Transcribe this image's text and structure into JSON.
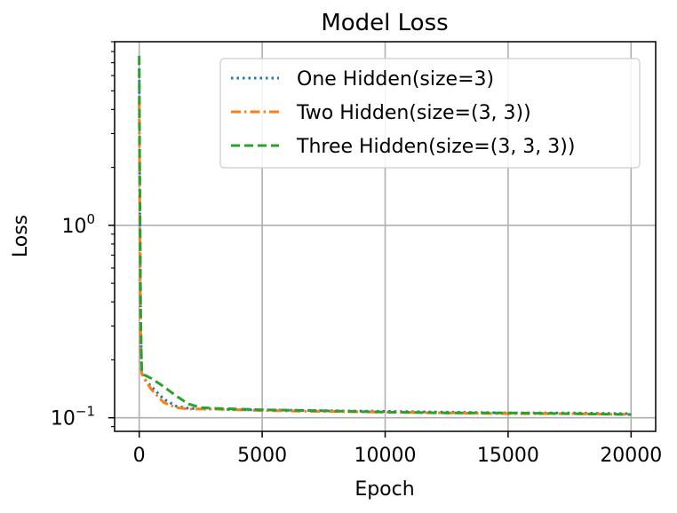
{
  "chart_data": {
    "type": "line",
    "title": "Model Loss",
    "xlabel": "Epoch",
    "ylabel": "Loss",
    "yscale": "log",
    "xlim": [
      -1000,
      21000
    ],
    "ylim": [
      0.085,
      9.0
    ],
    "grid": true,
    "legend_position": "top-right",
    "x_ticks": [
      {
        "value": 0,
        "label": "0"
      },
      {
        "value": 5000,
        "label": "5000"
      },
      {
        "value": 10000,
        "label": "10000"
      },
      {
        "value": 15000,
        "label": "15000"
      },
      {
        "value": 20000,
        "label": "20000"
      }
    ],
    "y_ticks": [
      {
        "value": 0.1,
        "base": "10",
        "exp": "−1"
      },
      {
        "value": 1,
        "base": "10",
        "exp": "0"
      }
    ],
    "series": [
      {
        "name": "One Hidden(size=3)",
        "color": "#1f77b4",
        "dash": "dotted",
        "x": [
          0,
          20,
          60,
          100,
          200,
          500,
          1000,
          1500,
          2000,
          2500,
          3000,
          4000,
          5000,
          7000,
          10000,
          12500,
          15000,
          17500,
          20000
        ],
        "y": [
          7.0,
          1.8,
          0.3,
          0.175,
          0.16,
          0.145,
          0.125,
          0.115,
          0.112,
          0.111,
          0.111,
          0.11,
          0.11,
          0.109,
          0.108,
          0.107,
          0.106,
          0.106,
          0.105
        ]
      },
      {
        "name": "Two Hidden(size=(3, 3))",
        "color": "#ff7f0e",
        "dash": "dashdot",
        "x": [
          0,
          20,
          60,
          100,
          200,
          500,
          1000,
          1500,
          2000,
          2500,
          3000,
          4000,
          5000,
          7000,
          10000,
          12500,
          15000,
          17500,
          20000
        ],
        "y": [
          4.5,
          1.2,
          0.25,
          0.17,
          0.16,
          0.14,
          0.12,
          0.113,
          0.111,
          0.111,
          0.111,
          0.11,
          0.109,
          0.108,
          0.107,
          0.106,
          0.105,
          0.105,
          0.104
        ]
      },
      {
        "name": "Three Hidden(size=(3, 3, 3))",
        "color": "#2ca02c",
        "dash": "dashed",
        "x": [
          0,
          20,
          60,
          100,
          200,
          500,
          1000,
          1500,
          2000,
          2500,
          3000,
          4000,
          5000,
          7000,
          10000,
          12500,
          15000,
          17500,
          20000
        ],
        "y": [
          7.6,
          2.0,
          0.35,
          0.175,
          0.167,
          0.16,
          0.145,
          0.13,
          0.118,
          0.113,
          0.112,
          0.111,
          0.11,
          0.109,
          0.107,
          0.106,
          0.106,
          0.105,
          0.104
        ]
      }
    ]
  }
}
